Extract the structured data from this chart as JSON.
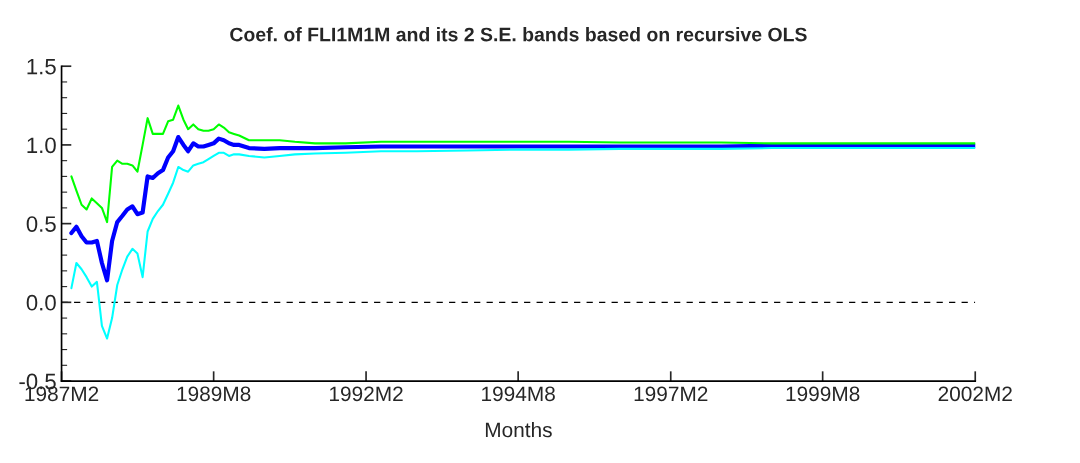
{
  "chart_data": {
    "type": "line",
    "title": "Coef. of FLI1M1M and its 2 S.E. bands based on recursive OLS",
    "xlabel": "Months",
    "x": [
      "1987-04",
      "1987-05",
      "1987-06",
      "1987-07",
      "1987-08",
      "1987-09",
      "1987-10",
      "1987-11",
      "1987-12",
      "1988-01",
      "1988-02",
      "1988-03",
      "1988-04",
      "1988-05",
      "1988-06",
      "1988-07",
      "1988-08",
      "1988-09",
      "1988-10",
      "1988-11",
      "1988-12",
      "1989-01",
      "1989-02",
      "1989-03",
      "1989-04",
      "1989-05",
      "1989-06",
      "1989-07",
      "1989-08",
      "1989-09",
      "1989-10",
      "1989-11",
      "1989-12",
      "1990-01",
      "1990-03",
      "1990-06",
      "1990-09",
      "1990-12",
      "1991-04",
      "1991-10",
      "1992-05",
      "1992-12",
      "1993-10",
      "1994-08",
      "1995-06",
      "1996-04",
      "1997-02",
      "1997-12",
      "1998-10",
      "1999-08",
      "2000-06",
      "2001-04",
      "2002-02"
    ],
    "series": [
      {
        "color": "#00ff00",
        "values": [
          0.8,
          0.71,
          0.62,
          0.59,
          0.66,
          0.63,
          0.6,
          0.51,
          0.86,
          0.9,
          0.88,
          0.88,
          0.87,
          0.83,
          1.0,
          1.17,
          1.07,
          1.07,
          1.07,
          1.15,
          1.16,
          1.25,
          1.16,
          1.1,
          1.13,
          1.1,
          1.09,
          1.09,
          1.1,
          1.13,
          1.11,
          1.08,
          1.07,
          1.06,
          1.03,
          1.03,
          1.03,
          1.02,
          1.01,
          1.01,
          1.02,
          1.02,
          1.02,
          1.02,
          1.02,
          1.015,
          1.015,
          1.015,
          1.01,
          1.01,
          1.01,
          1.01,
          1.01
        ]
      },
      {
        "color": "#00ffff",
        "values": [
          0.09,
          0.25,
          0.21,
          0.16,
          0.1,
          0.13,
          -0.15,
          -0.23,
          -0.1,
          0.11,
          0.21,
          0.29,
          0.34,
          0.31,
          0.16,
          0.45,
          0.53,
          0.58,
          0.62,
          0.69,
          0.76,
          0.86,
          0.84,
          0.83,
          0.87,
          0.88,
          0.89,
          0.91,
          0.93,
          0.95,
          0.95,
          0.93,
          0.94,
          0.94,
          0.93,
          0.92,
          0.93,
          0.94,
          0.945,
          0.95,
          0.96,
          0.96,
          0.965,
          0.97,
          0.97,
          0.975,
          0.975,
          0.975,
          0.98,
          0.98,
          0.98,
          0.98,
          0.98
        ]
      },
      {
        "color": "#0000ff",
        "values": [
          0.44,
          0.48,
          0.42,
          0.38,
          0.38,
          0.39,
          0.25,
          0.14,
          0.39,
          0.51,
          0.55,
          0.59,
          0.61,
          0.56,
          0.57,
          0.8,
          0.79,
          0.82,
          0.84,
          0.92,
          0.96,
          1.05,
          1.0,
          0.96,
          1.01,
          0.99,
          0.99,
          1.0,
          1.01,
          1.04,
          1.03,
          1.01,
          1.0,
          1.0,
          0.98,
          0.975,
          0.98,
          0.98,
          0.98,
          0.985,
          0.99,
          0.99,
          0.99,
          0.99,
          0.99,
          0.99,
          0.99,
          0.99,
          0.995,
          0.995,
          0.995,
          0.995,
          0.995
        ]
      }
    ],
    "xlim": [
      "1987-02",
      "2002-02"
    ],
    "xticks": [
      {
        "value": "1987-02",
        "label": "1987M2"
      },
      {
        "value": "1989-08",
        "label": "1989M8"
      },
      {
        "value": "1992-02",
        "label": "1992M2"
      },
      {
        "value": "1994-08",
        "label": "1994M8"
      },
      {
        "value": "1997-02",
        "label": "1997M2"
      },
      {
        "value": "1999-08",
        "label": "1999M8"
      },
      {
        "value": "2002-02",
        "label": "2002M2"
      }
    ],
    "ylim": [
      -0.5,
      1.5
    ],
    "yticks": [
      {
        "value": -0.5,
        "label": "-0.5"
      },
      {
        "value": 0,
        "label": "0.0"
      },
      {
        "value": 0.5,
        "label": "0.5"
      },
      {
        "value": 1.0,
        "label": "1.0"
      },
      {
        "value": 1.5,
        "label": "1.5"
      }
    ],
    "ref_lines": [
      {
        "axis": "y",
        "value": 0,
        "color": "#000000",
        "line_style": "dashed"
      }
    ],
    "grid": false,
    "legend": false
  }
}
